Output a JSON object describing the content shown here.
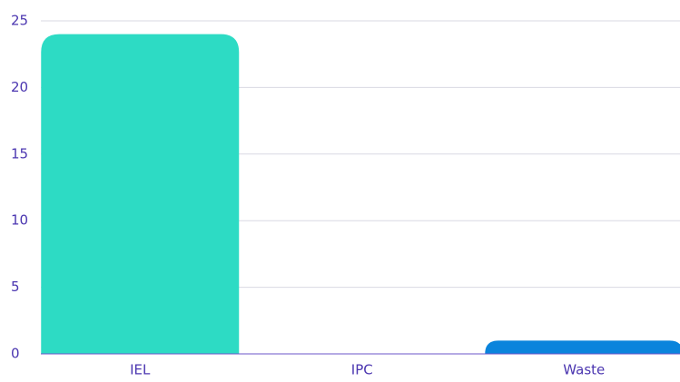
{
  "chart_data": {
    "type": "bar",
    "categories": [
      "IEL",
      "IPC",
      "Waste"
    ],
    "values": [
      24,
      0,
      1
    ],
    "colors": [
      "#2ddbc4",
      "#5a3ec8",
      "#0a84dc"
    ],
    "ylim": [
      0,
      25
    ],
    "yticks": [
      0,
      5,
      10,
      15,
      20,
      25
    ],
    "grid": true
  }
}
